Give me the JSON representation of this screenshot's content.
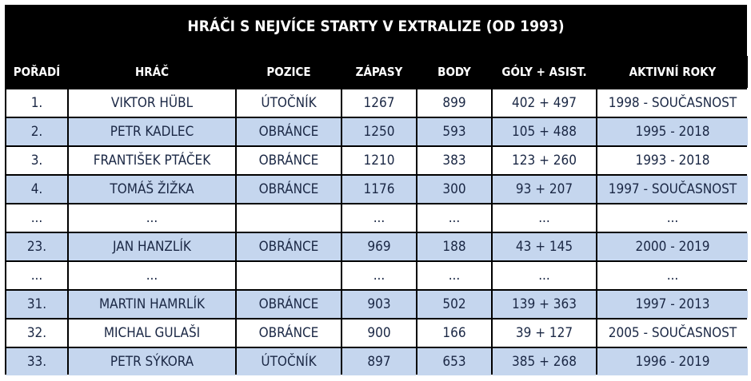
{
  "title": "HRÁČI S NEJVÍCE STARTY V EXTRALIZE (OD 1993)",
  "headers": [
    "POŘADÍ",
    "HRÁČ",
    "POZICE",
    "ZÁPASY",
    "BODY",
    "GÓLY + ASIST.",
    "AKTIVNÍ ROKY"
  ],
  "rows": [
    {
      "rank": "1.",
      "player": "VIKTOR HÜBL",
      "position": "ÚTOČNÍK",
      "games": "1267",
      "points": "899",
      "goals_assists": "402 + 497",
      "years": "1998 - SOUČASNOST"
    },
    {
      "rank": "2.",
      "player": "PETR KADLEC",
      "position": "OBRÁNCE",
      "games": "1250",
      "points": "593",
      "goals_assists": "105 + 488",
      "years": "1995 - 2018"
    },
    {
      "rank": "3.",
      "player": "FRANTIŠEK PTÁČEK",
      "position": "OBRÁNCE",
      "games": "1210",
      "points": "383",
      "goals_assists": "123 + 260",
      "years": "1993 - 2018"
    },
    {
      "rank": "4.",
      "player": "TOMÁŠ ŽIŽKA",
      "position": "OBRÁNCE",
      "games": "1176",
      "points": "300",
      "goals_assists": "93 + 207",
      "years": "1997 - SOUČASNOST"
    },
    {
      "rank": "...",
      "player": "...",
      "position": "",
      "games": "...",
      "points": "...",
      "goals_assists": "...",
      "years": "..."
    },
    {
      "rank": "23.",
      "player": "JAN HANZLÍK",
      "position": "OBRÁNCE",
      "games": "969",
      "points": "188",
      "goals_assists": "43 + 145",
      "years": "2000 - 2019"
    },
    {
      "rank": "...",
      "player": "...",
      "position": "",
      "games": "...",
      "points": "...",
      "goals_assists": "...",
      "years": "..."
    },
    {
      "rank": "31.",
      "player": "MARTIN HAMRLÍK",
      "position": "OBRÁNCE",
      "games": "903",
      "points": "502",
      "goals_assists": "139 + 363",
      "years": "1997 - 2013"
    },
    {
      "rank": "32.",
      "player": "MICHAL GULAŠI",
      "position": "OBRÁNCE",
      "games": "900",
      "points": "166",
      "goals_assists": "39 + 127",
      "years": "2005 - SOUČASNOST"
    },
    {
      "rank": "33.",
      "player": "PETR SÝKORA",
      "position": "ÚTOČNÍK",
      "games": "897",
      "points": "653",
      "goals_assists": "385 + 268",
      "years": "1996 - 2019"
    }
  ],
  "colors": {
    "background": "#000000",
    "row_light": "#ffffff",
    "row_blue": "#c5d6ee",
    "text_dark": "#1a2744",
    "header_text": "#ffffff"
  }
}
